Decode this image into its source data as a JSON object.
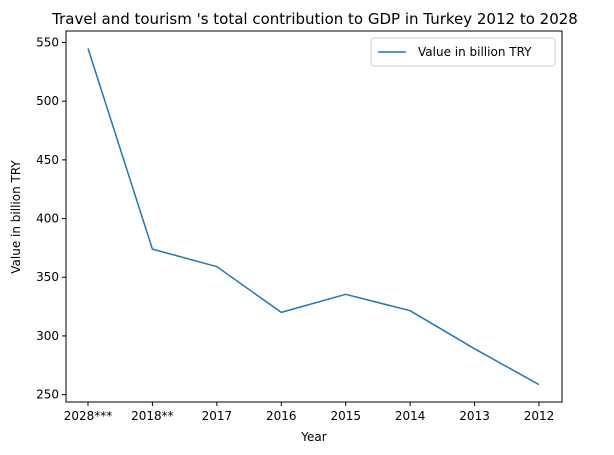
{
  "chart_data": {
    "type": "line",
    "title": "Travel and tourism 's total contribution to GDP in Turkey 2012 to 2028",
    "xlabel": "Year",
    "ylabel": "Value in billion TRY",
    "categories": [
      "2028***",
      "2018**",
      "2017",
      "2016",
      "2015",
      "2014",
      "2013",
      "2012"
    ],
    "series": [
      {
        "name": "Value in billion TRY",
        "color": "#1f77b4",
        "values": [
          545,
          374,
          359,
          320,
          335.5,
          321.5,
          289,
          258.5
        ]
      }
    ],
    "yticks": [
      250,
      300,
      350,
      400,
      450,
      500,
      550
    ],
    "ylim": [
      243.7,
      559.8
    ],
    "grid": false,
    "legend_position": "top-right"
  }
}
